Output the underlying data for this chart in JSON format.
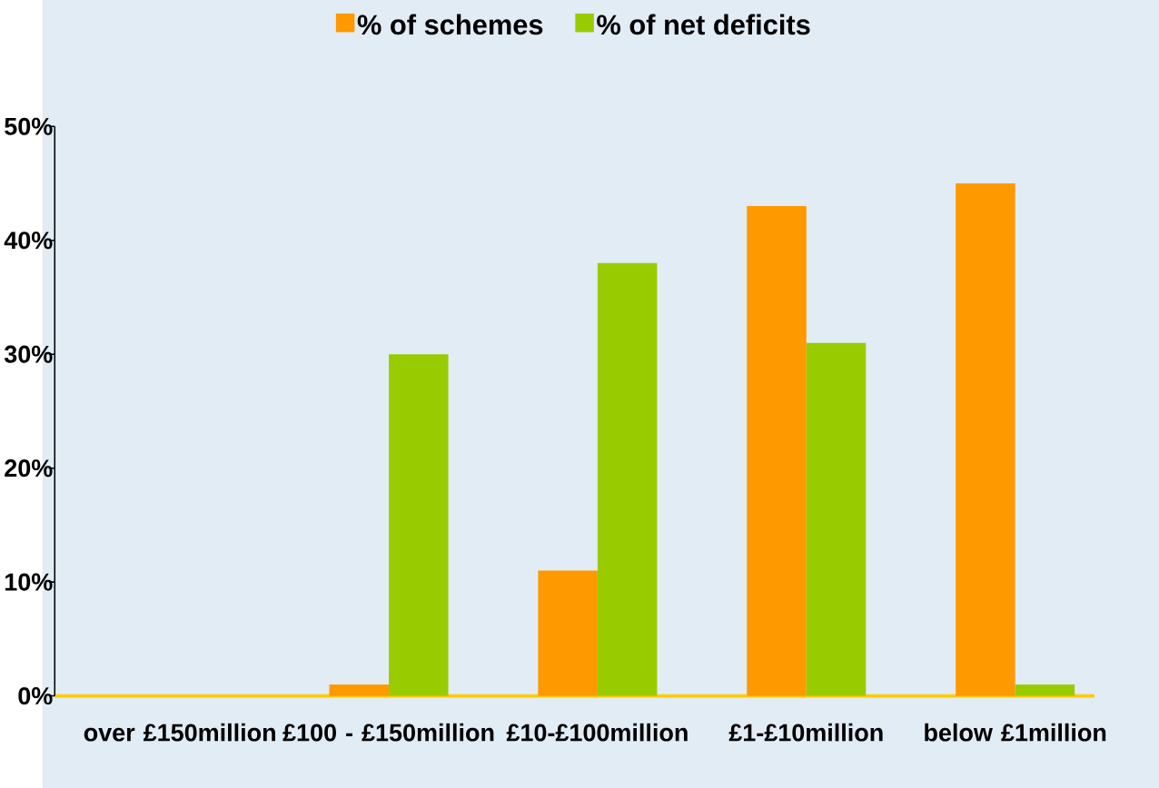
{
  "chart_data": {
    "type": "bar",
    "categories": [
      "over £150million",
      "£100 - £150million",
      "£10-£100million",
      "£1-£10million",
      "below £1million"
    ],
    "series": [
      {
        "name": "% of schemes",
        "color": "#ff9900",
        "values": [
          0,
          1,
          11,
          43,
          45
        ]
      },
      {
        "name": "% of net deficits",
        "color": "#99cc00",
        "values": [
          0,
          30,
          38,
          31,
          1
        ]
      }
    ],
    "ylim": [
      0,
      50
    ],
    "yticks": [
      {
        "value": 0,
        "label": "0%"
      },
      {
        "value": 10,
        "label": "10%"
      },
      {
        "value": 20,
        "label": "20%"
      },
      {
        "value": 30,
        "label": "30%"
      },
      {
        "value": 40,
        "label": "40%"
      },
      {
        "value": 50,
        "label": "50%"
      }
    ],
    "legend": "top"
  }
}
